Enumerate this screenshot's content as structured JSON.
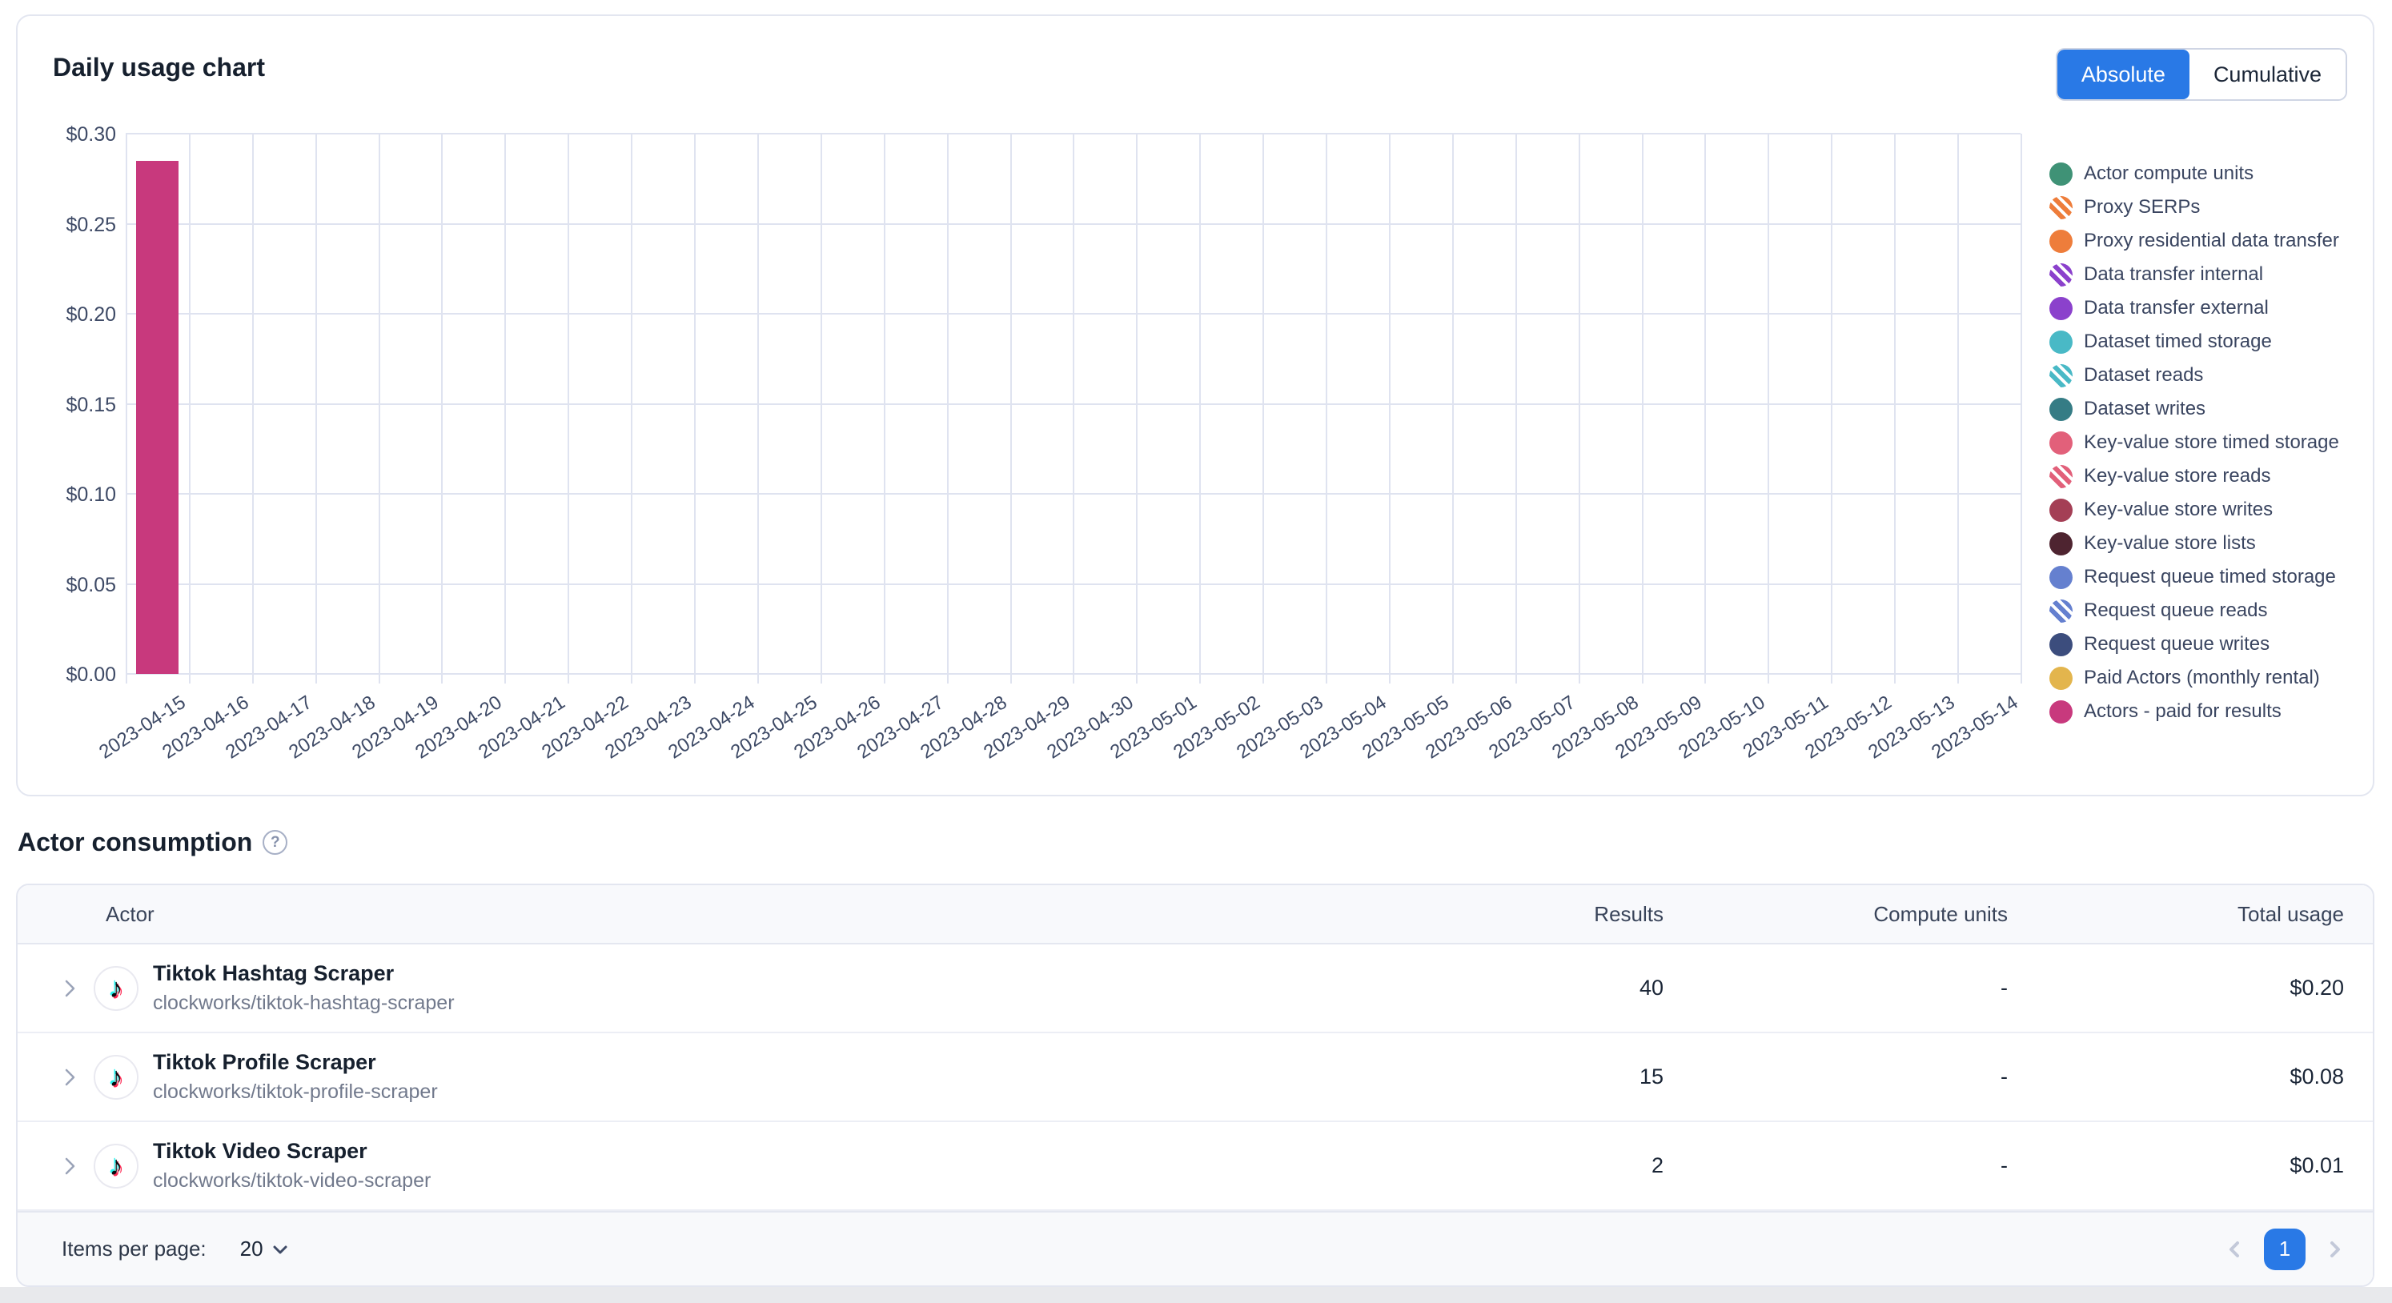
{
  "colors": {
    "accent_blue": "#2979e6",
    "bar_magenta": "#c8397d",
    "grid_line": "#dfe3f0",
    "card_border": "#e3e6f0"
  },
  "chart_card": {
    "title": "Daily usage chart",
    "toggle": {
      "absolute_label": "Absolute",
      "cumulative_label": "Cumulative",
      "selected": "Absolute"
    }
  },
  "chart_data": {
    "type": "bar",
    "title": "Daily usage chart",
    "mode": "absolute",
    "x": [
      "2023-04-15",
      "2023-04-16",
      "2023-04-17",
      "2023-04-18",
      "2023-04-19",
      "2023-04-20",
      "2023-04-21",
      "2023-04-22",
      "2023-04-23",
      "2023-04-24",
      "2023-04-25",
      "2023-04-26",
      "2023-04-27",
      "2023-04-28",
      "2023-04-29",
      "2023-04-30",
      "2023-05-01",
      "2023-05-02",
      "2023-05-03",
      "2023-05-04",
      "2023-05-05",
      "2023-05-06",
      "2023-05-07",
      "2023-05-08",
      "2023-05-09",
      "2023-05-10",
      "2023-05-11",
      "2023-05-12",
      "2023-05-13",
      "2023-05-14"
    ],
    "series": [
      {
        "name": "Actors - paid for results",
        "color": "#c8397d",
        "values": [
          0.285,
          0,
          0,
          0,
          0,
          0,
          0,
          0,
          0,
          0,
          0,
          0,
          0,
          0,
          0,
          0,
          0,
          0,
          0,
          0,
          0,
          0,
          0,
          0,
          0,
          0,
          0,
          0,
          0,
          0
        ]
      }
    ],
    "ylim": [
      0,
      0.3
    ],
    "yticks": [
      "$0.00",
      "$0.05",
      "$0.10",
      "$0.15",
      "$0.20",
      "$0.25",
      "$0.30"
    ],
    "grid": true,
    "legend_position": "right",
    "legend": [
      {
        "label": "Actor compute units",
        "color": "#3f9276",
        "hatched": false
      },
      {
        "label": "Proxy SERPs",
        "color": "#ee7d3b",
        "hatched": true
      },
      {
        "label": "Proxy residential data transfer",
        "color": "#ee7d3b",
        "hatched": false
      },
      {
        "label": "Data transfer internal",
        "color": "#8b41cc",
        "hatched": true
      },
      {
        "label": "Data transfer external",
        "color": "#8b41cc",
        "hatched": false
      },
      {
        "label": "Dataset timed storage",
        "color": "#49b9c6",
        "hatched": false
      },
      {
        "label": "Dataset reads",
        "color": "#49b9c6",
        "hatched": true
      },
      {
        "label": "Dataset writes",
        "color": "#357c85",
        "hatched": false
      },
      {
        "label": "Key-value store timed storage",
        "color": "#e2607a",
        "hatched": false
      },
      {
        "label": "Key-value store reads",
        "color": "#e2607a",
        "hatched": true
      },
      {
        "label": "Key-value store writes",
        "color": "#a43f55",
        "hatched": false
      },
      {
        "label": "Key-value store lists",
        "color": "#4e2430",
        "hatched": false
      },
      {
        "label": "Request queue timed storage",
        "color": "#6580cf",
        "hatched": false
      },
      {
        "label": "Request queue reads",
        "color": "#6580cf",
        "hatched": true
      },
      {
        "label": "Request queue writes",
        "color": "#3c4d7d",
        "hatched": false
      },
      {
        "label": "Paid Actors (monthly rental)",
        "color": "#e3b54d",
        "hatched": false
      },
      {
        "label": "Actors - paid for results",
        "color": "#c8397d",
        "hatched": false
      }
    ]
  },
  "consumption": {
    "heading": "Actor consumption",
    "table": {
      "columns": [
        "Actor",
        "Results",
        "Compute units",
        "Total usage"
      ],
      "rows": [
        {
          "name": "Tiktok Hashtag Scraper",
          "path": "clockworks/tiktok-hashtag-scraper",
          "results": "40",
          "compute_units": "-",
          "total_usage": "$0.20"
        },
        {
          "name": "Tiktok Profile Scraper",
          "path": "clockworks/tiktok-profile-scraper",
          "results": "15",
          "compute_units": "-",
          "total_usage": "$0.08"
        },
        {
          "name": "Tiktok Video Scraper",
          "path": "clockworks/tiktok-video-scraper",
          "results": "2",
          "compute_units": "-",
          "total_usage": "$0.01"
        }
      ]
    },
    "pagination": {
      "items_per_page_label": "Items per page:",
      "items_per_page_value": "20",
      "current_page": "1"
    }
  }
}
